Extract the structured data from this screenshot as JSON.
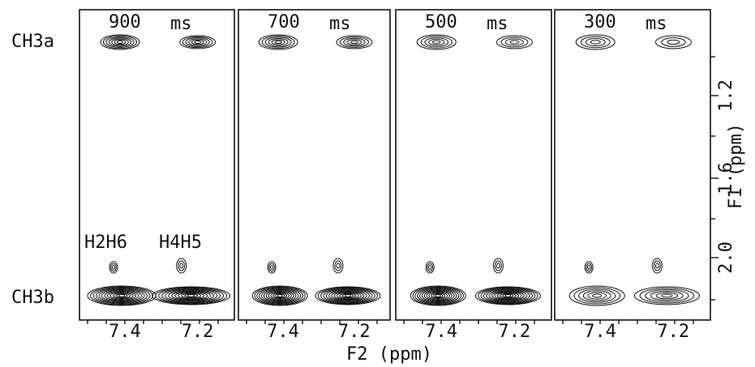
{
  "rows": [
    "CH3a",
    "CH3b"
  ],
  "peaks": [
    "H2H6",
    "H4H5"
  ],
  "panels": [
    {
      "time": "900",
      "unit": "ms"
    },
    {
      "time": "700",
      "unit": "ms"
    },
    {
      "time": "500",
      "unit": "ms"
    },
    {
      "time": "300",
      "unit": "ms"
    }
  ],
  "x_axis": {
    "label": "F2 (ppm)",
    "ticks": [
      "7.4",
      "7.2"
    ]
  },
  "y_axis": {
    "label": "F1 (ppm)",
    "ticks": [
      "1.2",
      "1.6",
      "2.0"
    ]
  }
}
